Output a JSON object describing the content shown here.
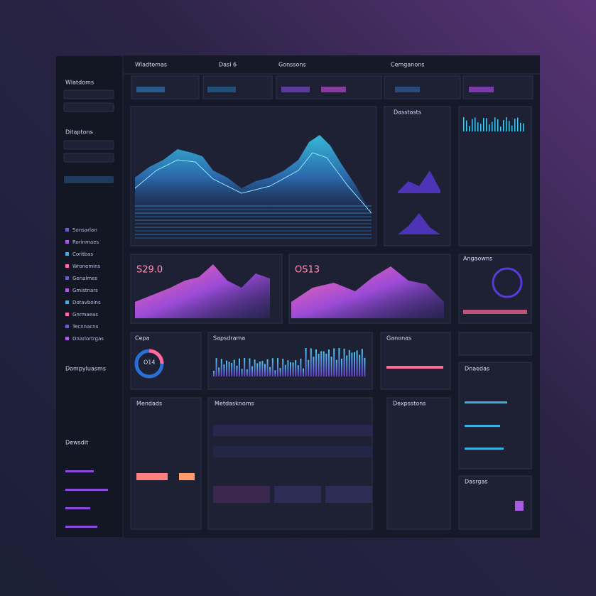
{
  "header": {
    "tabs": [
      "Wladtemas",
      "Dasl 6",
      "Gonssons",
      "Cemganons"
    ]
  },
  "sidebar": {
    "title": "Wlatdoms",
    "section": "Ditaptons",
    "items": [
      "Sonsarlan",
      "Rorinmaes",
      "Coritbas",
      "Wronemins",
      "Genalmes",
      "Gmistnars",
      "Dotavbolns",
      "Gnrmaeas",
      "Tecnnacns",
      "Dnariortrgas"
    ],
    "group": "Dompyluasms",
    "footer": "Dewsdit"
  },
  "panels": {
    "chart_a": "S29.0",
    "chart_b": "OS13",
    "gauge_title": "Cepa",
    "gauge_value": "O14",
    "bars_title": "Sapsdrama",
    "right_top": "Dasstasts",
    "right_mid": "Angaowns",
    "small_card": "Ganonas",
    "list_a": "Mendads",
    "list_b": "Metdasknoms",
    "list_c": "Dexpsstons",
    "side_r": "Dnaedas",
    "side_r2": "Dasrgas"
  }
}
